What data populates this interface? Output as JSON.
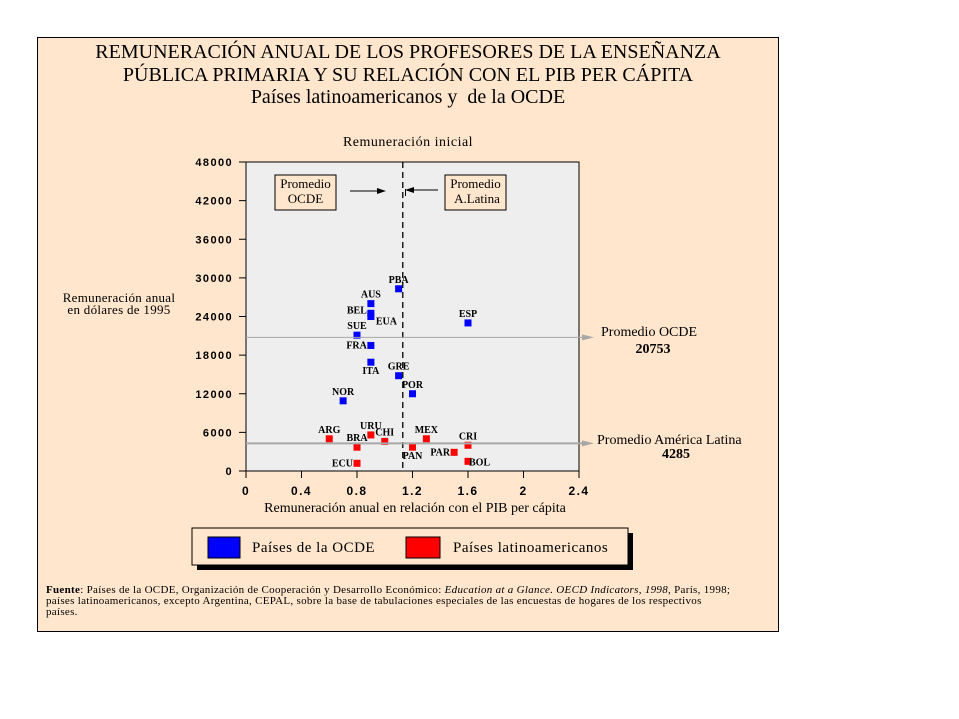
{
  "title": {
    "line1": "REMUNERACIÓN ANUAL DE LOS PROFESORES DE LA ENSEÑANZA",
    "line2": "PÚBLICA PRIMARIA Y SU RELACIÓN CON EL PIB PER CÁPITA",
    "line3": "Países latinoamericanos y  de la OCDE"
  },
  "chart_data": {
    "type": "scatter",
    "title": "REMUNERACIÓN ANUAL DE LOS PROFESORES DE LA ENSEÑANZA PÚBLICA PRIMARIA Y SU RELACIÓN CON EL PIB PER CÁPITA",
    "subtitle": "Países latinoamericanos y  de la OCDE",
    "xlabel": "Remuneración anual en relación con el PIB per cápita",
    "ylabel": "Remuneración anual en dólares de 1995",
    "ylabel_lines": [
      "Remuneración anual",
      "en dólares de 1995"
    ],
    "xlim": [
      0,
      2.4
    ],
    "ylim": [
      0,
      48000
    ],
    "x_ticks": [
      0,
      0.4,
      0.8,
      1.2,
      1.6,
      2,
      2.4
    ],
    "y_ticks": [
      0,
      6000,
      12000,
      18000,
      24000,
      30000,
      36000,
      42000,
      48000
    ],
    "grid": false,
    "series": [
      {
        "name": "Países de la OCDE",
        "color": "#0000FF",
        "points": [
          {
            "label": "PBA",
            "x": 1.1,
            "y": 28300,
            "label_pos": "above"
          },
          {
            "label": "AUS",
            "x": 0.9,
            "y": 26000,
            "label_pos": "above"
          },
          {
            "label": "BEL",
            "x": 0.9,
            "y": 24500,
            "label_pos": "upper-left"
          },
          {
            "label": "EUA",
            "x": 0.9,
            "y": 24000,
            "label_pos": "lower-right"
          },
          {
            "label": "SUE",
            "x": 0.8,
            "y": 21100,
            "label_pos": "above"
          },
          {
            "label": "FRA",
            "x": 0.9,
            "y": 19500,
            "label_pos": "left"
          },
          {
            "label": "ESP",
            "x": 1.6,
            "y": 23000,
            "label_pos": "above"
          },
          {
            "label": "ITA",
            "x": 0.9,
            "y": 16900,
            "label_pos": "below"
          },
          {
            "label": "GRE",
            "x": 1.1,
            "y": 14800,
            "label_pos": "above"
          },
          {
            "label": "POR",
            "x": 1.2,
            "y": 12000,
            "label_pos": "above"
          },
          {
            "label": "NOR",
            "x": 0.7,
            "y": 10900,
            "label_pos": "above"
          }
        ]
      },
      {
        "name": "Países latinoamericanos",
        "color": "#FF0000",
        "points": [
          {
            "label": "ARG",
            "x": 0.6,
            "y": 5000,
            "label_pos": "above"
          },
          {
            "label": "BRA",
            "x": 0.8,
            "y": 3700,
            "label_pos": "above"
          },
          {
            "label": "URU",
            "x": 0.9,
            "y": 5600,
            "label_pos": "above"
          },
          {
            "label": "CHI",
            "x": 1.0,
            "y": 4600,
            "label_pos": "above"
          },
          {
            "label": "ECU",
            "x": 0.8,
            "y": 1200,
            "label_pos": "left"
          },
          {
            "label": "PAN",
            "x": 1.2,
            "y": 3700,
            "label_pos": "below"
          },
          {
            "label": "MEX",
            "x": 1.3,
            "y": 5000,
            "label_pos": "above"
          },
          {
            "label": "PAR",
            "x": 1.5,
            "y": 2900,
            "label_pos": "left"
          },
          {
            "label": "CRI",
            "x": 1.6,
            "y": 4000,
            "label_pos": "above"
          },
          {
            "label": "BOL",
            "x": 1.6,
            "y": 1500,
            "label_pos": "right"
          }
        ]
      }
    ],
    "reference_lines": [
      {
        "orientation": "vertical",
        "x": 1.13,
        "label": "Remuneración inicial"
      },
      {
        "orientation": "horizontal",
        "y": 20753,
        "label": "Promedio OCDE",
        "value_label": "20753"
      },
      {
        "orientation": "horizontal",
        "y": 4285,
        "label": "Promedio América Latina",
        "value_label": "4285"
      }
    ],
    "annotations": [
      {
        "lines": [
          "Promedio",
          "OCDE"
        ],
        "arrow": "right"
      },
      {
        "lines": [
          "Promedio",
          "A.Latina"
        ],
        "arrow": "left"
      }
    ],
    "legend": {
      "position": "bottom",
      "entries": [
        {
          "label": "Países de la OCDE",
          "color": "#0000FF"
        },
        {
          "label": "Países latinoamericanos",
          "color": "#FF0000"
        }
      ]
    }
  },
  "footnote": {
    "source_label": "Fuente",
    "line1_a": ": Países de la OCDE, Organización de Cooperación y Desarrollo Económico: ",
    "line1_italic": "Education at a Glance. OECD Indicators, 1998,",
    "line1_b": " París, 1998;",
    "line2": "países latinoamericanos, excepto Argentina, CEPAL, sobre la base de tabulaciones especiales de las encuestas de hogares de los respectivos",
    "line3": "países."
  },
  "colors": {
    "panel_background": "#FFE6CC",
    "plot_background": "#EEEEEE",
    "reference_line": "#A8A8A8"
  }
}
